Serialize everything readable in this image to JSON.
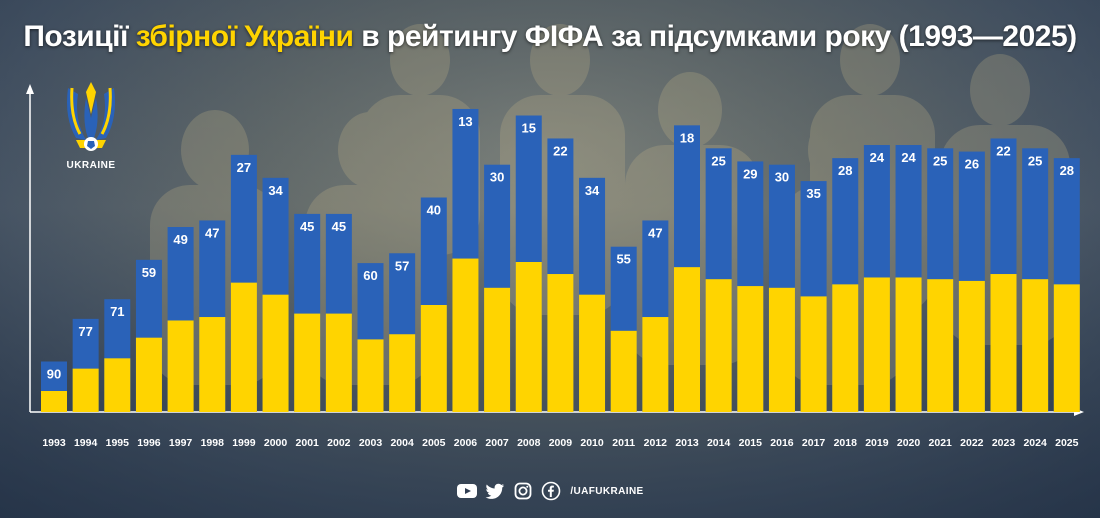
{
  "header": {
    "title_part1": "Позиції ",
    "title_highlight": "збірної України",
    "title_part2": " в рейтингу ФІФА за підсумками року (1993—2025)"
  },
  "logo": {
    "label": "UKRAINE"
  },
  "footer": {
    "handle": "/UAFUKRAINE"
  },
  "colors": {
    "top": "#2a62b8",
    "bottom": "#ffd400",
    "text": "#ffffff",
    "axis": "#ffffff"
  },
  "chart_data": {
    "type": "bar",
    "title": "Позиції збірної України в рейтингу ФІФА за підсумками року (1993—2025)",
    "xlabel": "",
    "ylabel": "",
    "inverted": true,
    "categories": [
      "1993",
      "1994",
      "1995",
      "1996",
      "1997",
      "1998",
      "1999",
      "2000",
      "2001",
      "2002",
      "2003",
      "2004",
      "2005",
      "2006",
      "2007",
      "2008",
      "2009",
      "2010",
      "2011",
      "2012",
      "2013",
      "2014",
      "2015",
      "2016",
      "2017",
      "2018",
      "2019",
      "2020",
      "2021",
      "2022",
      "2023",
      "2024",
      "2025"
    ],
    "values": [
      90,
      77,
      71,
      59,
      49,
      47,
      27,
      34,
      45,
      45,
      60,
      57,
      40,
      13,
      30,
      15,
      22,
      34,
      55,
      47,
      18,
      25,
      29,
      30,
      35,
      28,
      24,
      24,
      25,
      26,
      22,
      25,
      28
    ]
  }
}
